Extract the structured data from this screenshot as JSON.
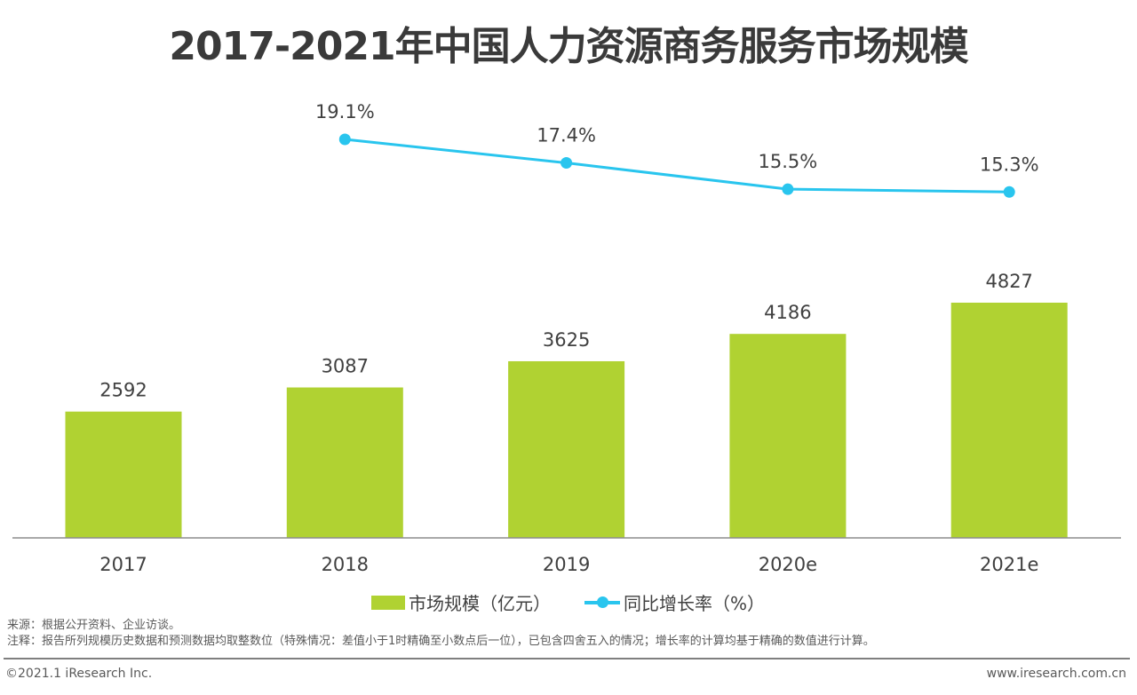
{
  "chart_data": {
    "type": "bar+line",
    "title": "2017-2021年中国人力资源商务服务市场规模",
    "categories": [
      "2017",
      "2018",
      "2019",
      "2020e",
      "2021e"
    ],
    "series": [
      {
        "name": "市场规模（亿元）",
        "type": "bar",
        "color": "#b0d232",
        "values": [
          2592,
          3087,
          3625,
          4186,
          4827
        ],
        "labels": [
          "2592",
          "3087",
          "3625",
          "4186",
          "4827"
        ]
      },
      {
        "name": "同比增长率（%）",
        "type": "line",
        "color": "#29c5ee",
        "values": [
          null,
          19.1,
          17.4,
          15.5,
          15.3
        ],
        "labels": [
          "",
          "19.1%",
          "17.4%",
          "15.5%",
          "15.3%"
        ]
      }
    ],
    "grid": false,
    "legend": "bottom"
  },
  "footer": {
    "source": "来源：根据公开资料、企业访谈。",
    "note": "注释：报告所列规模历史数据和预测数据均取整数位（特殊情况：差值小于1时精确至小数点后一位），已包含四舍五入的情况；增长率的计算均基于精确的数值进行计算。",
    "copyright": "©2021.1 iResearch Inc.",
    "url": "www.iresearch.com.cn"
  }
}
